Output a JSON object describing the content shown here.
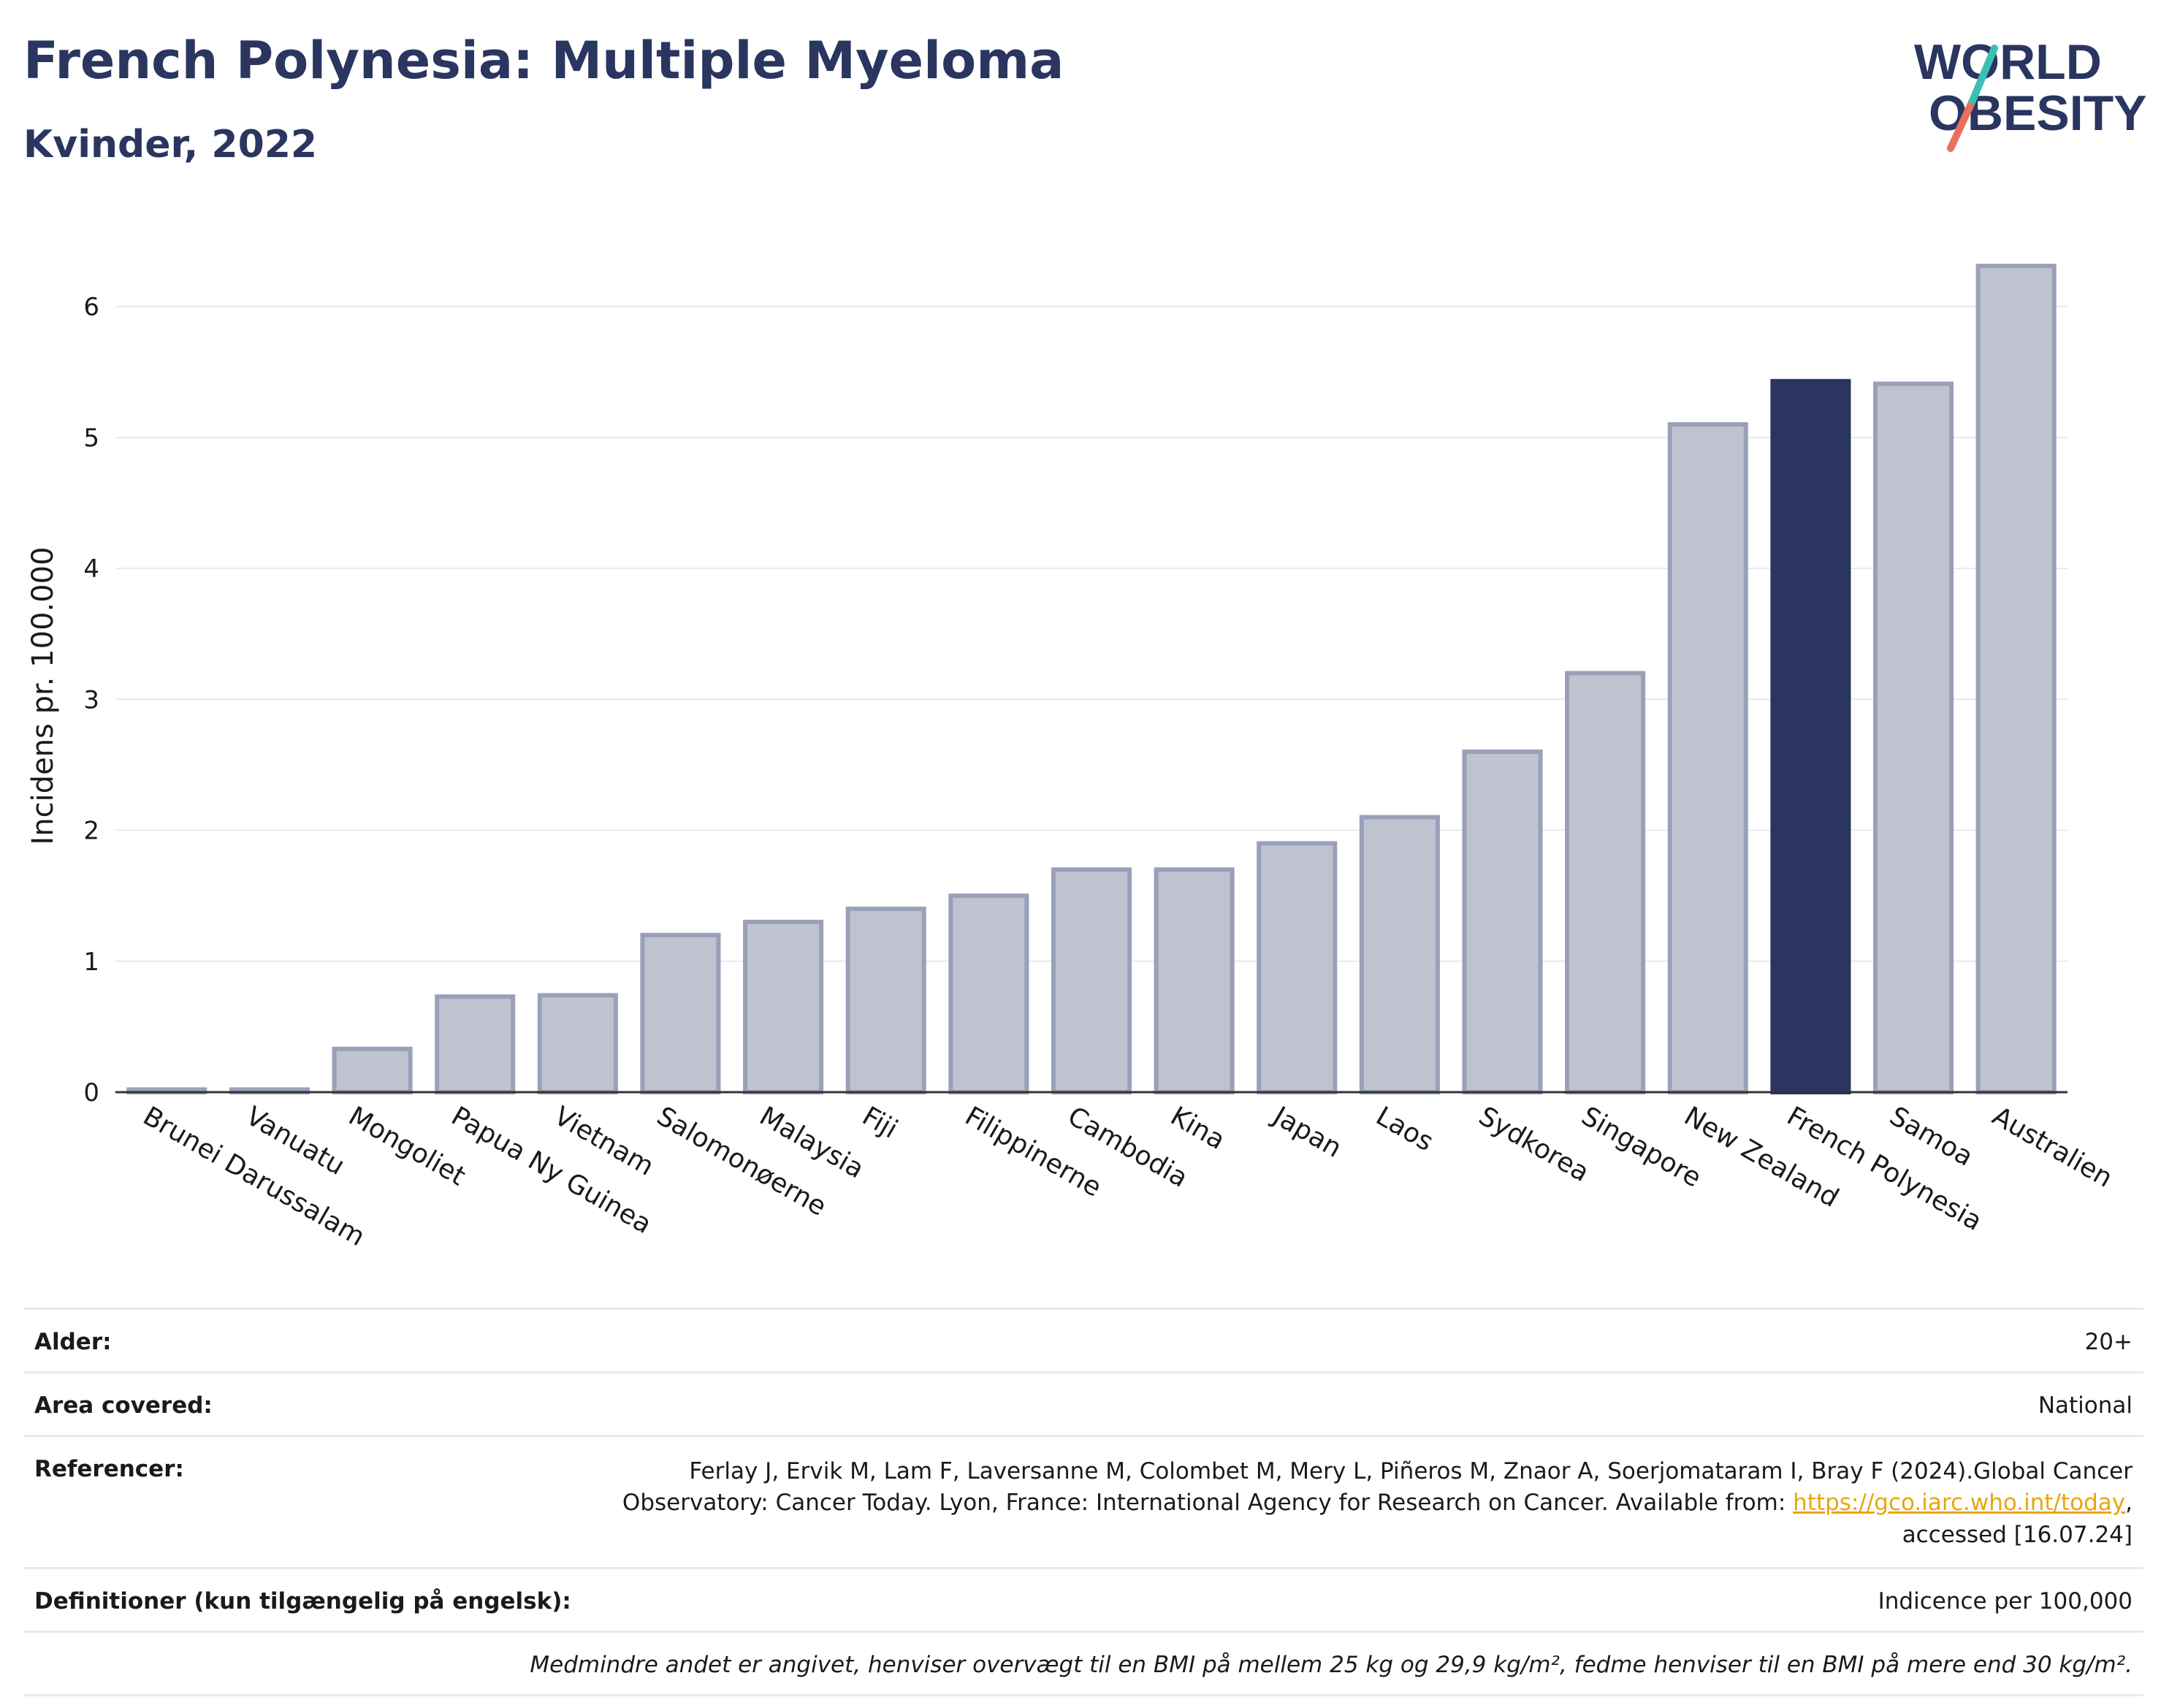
{
  "header": {
    "title": "French Polynesia: Multiple Myeloma",
    "subtitle": "Kvinder, 2022",
    "logo_line1": "WORLD",
    "logo_line2": "OBESITY"
  },
  "colors": {
    "highlight": "#2a3560",
    "bar_fill": "#bfc3d0",
    "bar_stroke": "#9aa0b8",
    "grid": "#e6e9f2",
    "logo_teal": "#3cbfb4",
    "logo_coral": "#e8705f"
  },
  "chart_data": {
    "type": "bar",
    "title": "French Polynesia: Multiple Myeloma",
    "subtitle": "Kvinder, 2022",
    "ylabel": "Incidens pr. 100.000",
    "ylim": [
      0,
      6.5
    ],
    "yticks": [
      0,
      1,
      2,
      3,
      4,
      5,
      6
    ],
    "grid": true,
    "highlight": "French Polynesia",
    "categories": [
      "Brunei Darussalam",
      "Vanuatu",
      "Mongoliet",
      "Papua Ny Guinea",
      "Vietnam",
      "Salomonøerne",
      "Malaysia",
      "Fiji",
      "Filippinerne",
      "Cambodia",
      "Kina",
      "Japan",
      "Laos",
      "Sydkorea",
      "Singapore",
      "New Zealand",
      "French Polynesia",
      "Samoa",
      "Australien"
    ],
    "values": [
      0.02,
      0.02,
      0.33,
      0.73,
      0.74,
      1.2,
      1.3,
      1.4,
      1.5,
      1.7,
      1.7,
      1.9,
      2.1,
      2.6,
      3.2,
      5.1,
      5.43,
      5.41,
      6.31
    ]
  },
  "meta": {
    "age_label": "Alder:",
    "age_value": "20+",
    "area_label": "Area covered:",
    "area_value": "National",
    "ref_label": "Referencer:",
    "ref_text": "Ferlay J, Ervik M, Lam F, Laversanne M, Colombet M, Mery L, Piñeros M, Znaor A, Soerjomataram I, Bray F (2024).Global Cancer Observatory: Cancer Today. Lyon, France: International Agency for Research on Cancer. Available from: ",
    "ref_link": "https://gco.iarc.who.int/today",
    "ref_tail": ", accessed [16.07.24]",
    "def_label": "Definitioner (kun tilgængelig på engelsk):",
    "def_value": "Indicence per 100,000",
    "footnote": "Medmindre andet er angivet, henviser overvægt til en BMI på mellem 25 kg og 29,9 kg/m², fedme henviser til en BMI på mere end 30 kg/m²."
  }
}
